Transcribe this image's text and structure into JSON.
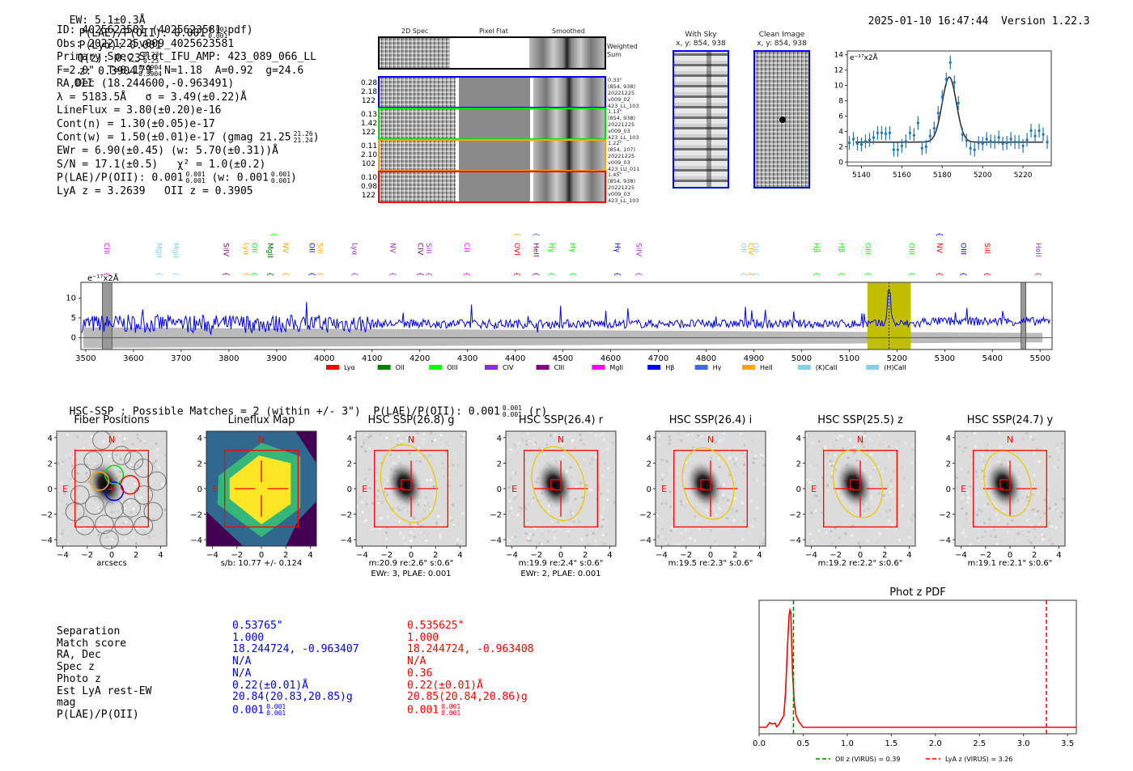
{
  "header": {
    "ew": "EW: 5.1±0.3Å",
    "plae_label": "P(LAE)/P(OII): 0.001",
    "plae_hi": "0.001",
    "plae_lo": "0.001",
    "plya": "P(Lyα): 0.001",
    "qz_label": "Q(z): 0.23",
    "qz_hi": "0.23",
    "qz_lo": "0.23",
    "z_label": "z: 0.3904",
    "z_hi": "0.3904",
    "z_lo": "0.3904",
    "z_line": "OII",
    "timestamp": "2025-01-10 16:47:44",
    "version": "Version 1.22.3"
  },
  "info": {
    "id": "ID: 4025623581 (4025623581.pdf)",
    "obs": "Obs: 20221225v009_4025623581",
    "primary": "Primary Spec_Slot_IFU_AMP: 423_089_066_LL",
    "params": "F=2.0\"  T=0.179  N=1.18  A=0.92  g=24.6",
    "radec": "RA,Dec (18.244600,-0.963491)",
    "lambda": "λ = 5183.5Å   σ = 3.49(±0.22)Å",
    "lineflux": "LineFlux = 3.80(±0.20)e-16",
    "cont_n": "Cont(n) = 1.30(±0.05)e-17",
    "cont_w": "Cont(w) = 1.50(±0.01)e-17 (gmag 21.25",
    "gmag_hi": "21.26",
    "gmag_lo": "21.24",
    "ewr": "EWr = 6.90(±0.45) (w: 5.70(±0.31))Å",
    "sn": "S/N = 17.1(±0.5)   χ² = 1.0(±0.2)",
    "plae": "P(LAE)/P(OII): 0.001",
    "plae_hi": "0.001",
    "plae_lo": "0.001",
    "plae_w": "(w: 0.001",
    "plae_w_hi": "0.001",
    "plae_w_lo": "0.001",
    "redshifts": "LyA z = 3.2639   OII z = 0.3905"
  },
  "cutouts": {
    "col_titles": [
      "2D Spec",
      "Pixel Flat",
      "Smoothed"
    ],
    "weighted_label": "Weighted\nSum",
    "rows": [
      {
        "color": "#0000ff",
        "left": [
          "0.28",
          "2.18",
          "122"
        ],
        "right": [
          "0.33\"",
          "(854, 938)",
          "20221225",
          "v009_02",
          "423_LL_103"
        ]
      },
      {
        "color": "#00dd00",
        "left": [
          "0.13",
          "1.42",
          "122"
        ],
        "right": [
          "1.13\"",
          "(854, 938)",
          "20221225",
          "v009_03",
          "423_LL_103"
        ]
      },
      {
        "color": "#ffa500",
        "left": [
          "0.11",
          "2.10",
          "102"
        ],
        "right": [
          "1.22\"",
          "(854, 107)",
          "20221225",
          "v009_03",
          "423_LU_011"
        ]
      },
      {
        "color": "#ff0000",
        "left": [
          "0.10",
          "0.98",
          "122"
        ],
        "right": [
          "1.45\"",
          "(854, 938)",
          "20221225",
          "v009_03",
          "423_LL_103"
        ]
      }
    ]
  },
  "ccd": {
    "with_sky_title": "With Sky",
    "with_sky_xy": "x, y: 854, 938",
    "clean_title": "Clean Image",
    "clean_xy": "x, y: 854, 938"
  },
  "chart_data": [
    {
      "type": "scatter",
      "title": "",
      "ylabel_annotation": "e⁻¹⁷x2Å",
      "xlim": [
        5133,
        5234
      ],
      "ylim": [
        -0.5,
        14.5
      ],
      "xticks": [
        5140,
        5160,
        5180,
        5200,
        5220
      ],
      "yticks": [
        0,
        2,
        4,
        6,
        8,
        10,
        12,
        14
      ],
      "points": {
        "x": [
          5134,
          5136,
          5138,
          5140,
          5142,
          5144,
          5146,
          5148,
          5150,
          5152,
          5154,
          5156,
          5158,
          5160,
          5162,
          5164,
          5166,
          5168,
          5170,
          5172,
          5174,
          5176,
          5178,
          5180,
          5182,
          5184,
          5186,
          5188,
          5190,
          5192,
          5194,
          5196,
          5198,
          5200,
          5202,
          5204,
          5206,
          5208,
          5210,
          5212,
          5214,
          5216,
          5218,
          5220,
          5222,
          5224,
          5226,
          5228,
          5230,
          5232
        ],
        "y": [
          2.5,
          3.0,
          2.4,
          2.3,
          2.7,
          2.9,
          3.2,
          3.8,
          3.8,
          3.7,
          3.8,
          1.6,
          1.6,
          2.1,
          2.7,
          3.8,
          3.5,
          5.1,
          1.8,
          2.0,
          3.4,
          4.4,
          6.4,
          8.5,
          10.8,
          13.0,
          10.4,
          7.7,
          3.6,
          2.8,
          1.8,
          1.6,
          2.5,
          2.4,
          3.0,
          2.7,
          2.6,
          3.2,
          2.4,
          2.5,
          3.0,
          2.6,
          2.6,
          2.1,
          2.9,
          4.1,
          3.4,
          4.1,
          3.6,
          2.6
        ],
        "yerr": 0.9
      },
      "model": {
        "continuum": 2.6,
        "center": 5183.5,
        "sigma": 3.49,
        "peak": 11.1
      },
      "color_points": "#1f77b4",
      "color_model": "#333333"
    },
    {
      "type": "line",
      "title": "",
      "ylabel_annotation": "e⁻¹⁷x2Å",
      "xlim": [
        3490,
        5525
      ],
      "ylim": [
        -3,
        14
      ],
      "xticks": [
        3500,
        3600,
        3700,
        3800,
        3900,
        4000,
        4100,
        4200,
        4300,
        4400,
        4500,
        4600,
        4700,
        4800,
        4900,
        5000,
        5100,
        5200,
        5300,
        5400,
        5500
      ],
      "yticks": [
        0,
        5,
        10
      ],
      "series_mean": 3.5,
      "emission_peak": {
        "x": 5183.5,
        "y": 12.5
      },
      "highlight_band": [
        5138,
        5229
      ],
      "masked_regions": [
        [
          3535,
          3555
        ],
        [
          5460,
          5470
        ]
      ],
      "line_markers": [
        {
          "label": "CIII",
          "x": 3545,
          "color": "#ff00ff",
          "tier": 0
        },
        {
          "label": "MgII",
          "x": 3655,
          "color": "#87ceeb",
          "tier": 0
        },
        {
          "label": "MgII",
          "x": 3690,
          "color": "#87ceeb",
          "tier": 0
        },
        {
          "label": "SiIV",
          "x": 3795,
          "color": "#800080",
          "tier": 0
        },
        {
          "label": "Lyα",
          "x": 3838,
          "color": "#ffa500",
          "tier": 0
        },
        {
          "label": "OII",
          "x": 3855,
          "color": "#00ff00",
          "tier": 0
        },
        {
          "label": "MgII",
          "x": 3888,
          "color": "#006400",
          "tier": 0
        },
        {
          "label": "OII",
          "x": 3895,
          "color": "#00ff00",
          "tier": 1
        },
        {
          "label": "NV",
          "x": 3920,
          "color": "#ffa500",
          "tier": 0
        },
        {
          "label": "OII",
          "x": 3975,
          "color": "#0000ff",
          "tier": 0
        },
        {
          "label": "SiII",
          "x": 3992,
          "color": "#ffa500",
          "tier": 0
        },
        {
          "label": "Lyα",
          "x": 4065,
          "color": "#9932cc",
          "tier": 0
        },
        {
          "label": "NV",
          "x": 4145,
          "color": "#9932cc",
          "tier": 0
        },
        {
          "label": "CIV",
          "x": 4202,
          "color": "#800080",
          "tier": 0
        },
        {
          "label": "SiII",
          "x": 4220,
          "color": "#9932cc",
          "tier": 0
        },
        {
          "label": "CII",
          "x": 4300,
          "color": "#ff00ff",
          "tier": 0
        },
        {
          "label": "OVI",
          "x": 4405,
          "color": "#ff0000",
          "tier": 0
        },
        {
          "label": "SiIV",
          "x": 4405,
          "color": "#ffa500",
          "tier": 1
        },
        {
          "label": "HeII",
          "x": 4445,
          "color": "#800080",
          "tier": 0
        },
        {
          "label": "OII",
          "x": 4445,
          "color": "#4169e1",
          "tier": 1
        },
        {
          "label": "Hγ",
          "x": 4478,
          "color": "#00ff00",
          "tier": 0
        },
        {
          "label": "Hγ",
          "x": 4522,
          "color": "#00ff00",
          "tier": 0
        },
        {
          "label": "Hγ",
          "x": 4615,
          "color": "#0000ff",
          "tier": 0
        },
        {
          "label": "SiIV",
          "x": 4660,
          "color": "#9932cc",
          "tier": 0
        },
        {
          "label": "OII",
          "x": 4880,
          "color": "#87ceeb",
          "tier": 0
        },
        {
          "label": "CIV",
          "x": 4895,
          "color": "#ffa500",
          "tier": 0
        },
        {
          "label": "OII",
          "x": 4905,
          "color": "#87ceeb",
          "tier": 0
        },
        {
          "label": "Hβ",
          "x": 5032,
          "color": "#00ff00",
          "tier": 0
        },
        {
          "label": "Hβ",
          "x": 5085,
          "color": "#00ff00",
          "tier": 0
        },
        {
          "label": "OIII",
          "x": 5140,
          "color": "#00ff00",
          "tier": 0
        },
        {
          "label": "OIII",
          "x": 5232,
          "color": "#00ff00",
          "tier": 0
        },
        {
          "label": "NV",
          "x": 5290,
          "color": "#ff0000",
          "tier": 0
        },
        {
          "label": "OIII",
          "x": 5290,
          "color": "#0000ff",
          "tier": 1
        },
        {
          "label": "OIII",
          "x": 5340,
          "color": "#0000ff",
          "tier": 0
        },
        {
          "label": "SiII",
          "x": 5390,
          "color": "#ff0000",
          "tier": 0
        },
        {
          "label": "HeII",
          "x": 5497,
          "color": "#9932cc",
          "tier": 0
        }
      ],
      "legend": [
        {
          "label": "Lyα",
          "color": "#ff0000"
        },
        {
          "label": "OII",
          "color": "#008000"
        },
        {
          "label": "OIII",
          "color": "#00ff00"
        },
        {
          "label": "CIV",
          "color": "#8a2be2"
        },
        {
          "label": "CIII",
          "color": "#800080"
        },
        {
          "label": "MgII",
          "color": "#ff00ff"
        },
        {
          "label": "Hβ",
          "color": "#0000ff"
        },
        {
          "label": "Hγ",
          "color": "#4169e1"
        },
        {
          "label": "HeII",
          "color": "#ffa500"
        },
        {
          "label": "(K)CaII",
          "color": "#87ceeb"
        },
        {
          "label": "(H)CaII",
          "color": "#87ceeb"
        }
      ],
      "legend_position": "bottom-center"
    },
    {
      "type": "line",
      "title": "Phot z PDF",
      "xlim": [
        0.0,
        3.6
      ],
      "xticks": [
        0.0,
        0.5,
        1.0,
        1.5,
        2.0,
        2.5,
        3.0,
        3.5
      ],
      "pdf": {
        "x": [
          0.0,
          0.08,
          0.1,
          0.12,
          0.14,
          0.16,
          0.18,
          0.2,
          0.22,
          0.25,
          0.28,
          0.3,
          0.32,
          0.34,
          0.35,
          0.36,
          0.37,
          0.38,
          0.4,
          0.42,
          0.45,
          0.5,
          3.6
        ],
        "y": [
          0.0,
          0.0,
          0.02,
          0.04,
          0.03,
          0.03,
          0.035,
          0.005,
          0.02,
          0.06,
          0.1,
          0.3,
          0.65,
          0.95,
          1.0,
          0.98,
          0.7,
          0.45,
          0.2,
          0.1,
          0.05,
          0.0,
          0.0
        ]
      },
      "vlines": [
        {
          "label": "OII z (VIRUS) = 0.39",
          "x": 0.39,
          "color": "#008000"
        },
        {
          "label": "LyA z (VIRUS) = 3.26",
          "x": 3.26,
          "color": "#ff0000"
        }
      ],
      "legend_position": "bottom"
    }
  ],
  "hsc": {
    "summary": "HSC-SSP : Possible Matches = 2 (within +/- 3\")  P(LAE)/P(OII): 0.001",
    "summary_hi": "0.001",
    "summary_lo": "0.001",
    "summary_band": "(r)",
    "axis_ticks": [
      "−4",
      "−2",
      "0",
      "2",
      "4"
    ],
    "north": "N",
    "east": "E",
    "panels": [
      {
        "title": "Fiber Positions",
        "caption": [
          "arcsecs"
        ],
        "kind": "fibers"
      },
      {
        "title": "Lineflux Map",
        "caption": [
          "s/b: 10.77 +/- 0.124"
        ],
        "kind": "lineflux"
      },
      {
        "title": "HSC SSP(26.8) g",
        "caption": [
          "m:20.9  re:2.6\"  s:0.6\"",
          "EWr: 3, PLAE: 0.001"
        ],
        "kind": "image",
        "ellipse": [
          1.0,
          1.0
        ]
      },
      {
        "title": "HSC SSP(26.4) r",
        "caption": [
          "m:19.9  re:2.4\"  s:0.6\"",
          "EWr: 2, PLAE: 0.001"
        ],
        "kind": "image",
        "ellipse": [
          0.95,
          0.95
        ]
      },
      {
        "title": "HSC SSP(26.4) i",
        "caption": [
          "m:19.5  re:2.3\"  s:0.6\""
        ],
        "kind": "image",
        "ellipse": [
          0.92,
          0.92
        ]
      },
      {
        "title": "HSC SSP(25.5) z",
        "caption": [
          "m:19.2  re:2.2\"  s:0.6\""
        ],
        "kind": "image",
        "ellipse": [
          0.88,
          0.88
        ]
      },
      {
        "title": "HSC SSP(24.7) y",
        "caption": [
          "m:19.1  re:2.1\"  s:0.6\""
        ],
        "kind": "image",
        "ellipse": [
          0.84,
          0.84
        ]
      }
    ]
  },
  "matches": {
    "labels": [
      "Separation",
      "Match score",
      "RA, Dec",
      "Spec z",
      "Photo z",
      "Est LyA rest-EW",
      "mag",
      "P(LAE)/P(OII)"
    ],
    "blue": [
      "0.53765\"",
      "1.000",
      "18.244724, -0.963407",
      "N/A",
      "N/A",
      "0.22(±0.01)Å",
      "20.84(20.83,20.85)g",
      "0.001"
    ],
    "blue_plae_hi": "0.001",
    "blue_plae_lo": "0.001",
    "red": [
      "0.535625\"",
      "1.000",
      "18.244724, -0.963408",
      "N/A",
      "0.36",
      "0.22(±0.01)Å",
      "20.85(20.84,20.86)g",
      "0.001"
    ],
    "red_plae_hi": "0.001",
    "red_plae_lo": "0.001",
    "blue_color": "#0000ff",
    "red_color": "#ff0000"
  }
}
